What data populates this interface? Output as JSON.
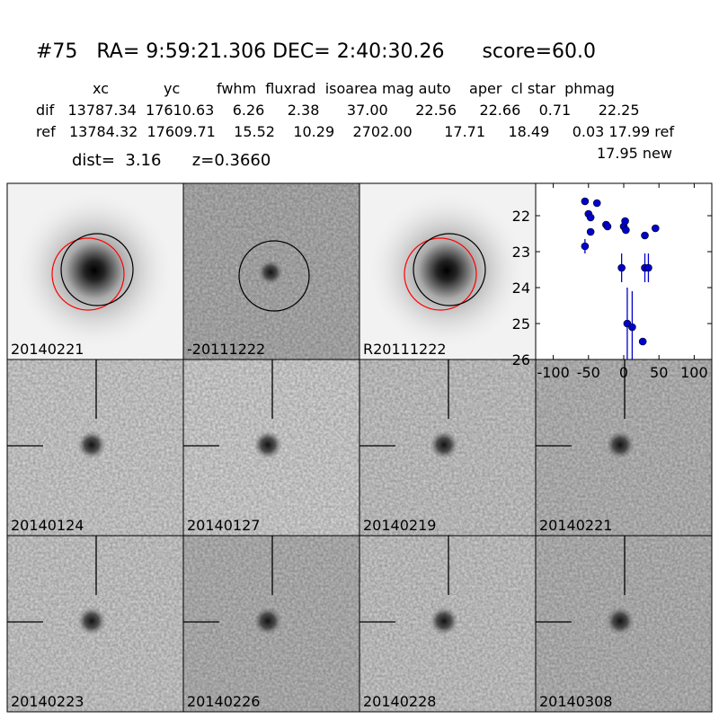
{
  "header": {
    "title": "#75   RA= 9:59:21.306 DEC= 2:40:30.26      score=60.0",
    "columns": "xc            yc        fwhm  fluxrad  isoarea mag auto    aper  cl star  phmag",
    "dif": "dif   13787.34  17610.63    6.26     2.38      37.00      22.56     22.66    0.71      22.25",
    "ref": "ref   13784.32  17609.71    15.52    10.29    2702.00       17.71     18.49     0.03 17.99 ref",
    "new": "17.95 new",
    "dist": "dist=  3.16      z=0.3660"
  },
  "panels": [
    {
      "label": "20140221"
    },
    {
      "label": "-20111222"
    },
    {
      "label": "R20111222"
    },
    {
      "label": "20140124"
    },
    {
      "label": "20140127"
    },
    {
      "label": "20140219"
    },
    {
      "label": "20140221",
      "color": "#ff0000"
    },
    {
      "label": "20140223"
    },
    {
      "label": "20140226"
    },
    {
      "label": "20140228"
    },
    {
      "label": "20140308"
    }
  ],
  "chart_data": {
    "type": "scatter",
    "color": "#0000cc",
    "x": [
      -55,
      -55,
      -50,
      -47,
      -47,
      -38,
      -25,
      -23,
      -3,
      0,
      2,
      3,
      5,
      12,
      27,
      30,
      30,
      35,
      45
    ],
    "values": [
      21.6,
      22.85,
      21.95,
      22.05,
      22.45,
      21.65,
      22.25,
      22.3,
      23.45,
      22.3,
      22.15,
      22.4,
      25.0,
      25.1,
      25.5,
      22.55,
      23.45,
      23.45,
      22.35
    ],
    "errors": [
      0.1,
      0.2,
      0.1,
      0.1,
      0.1,
      0.05,
      0.1,
      0.1,
      0.4,
      0.1,
      0.1,
      0.1,
      1.0,
      1.0,
      0.1,
      0.1,
      0.4,
      0.4,
      0.1
    ],
    "xlim": [
      -125,
      125
    ],
    "ylim": [
      21.1,
      26
    ],
    "xticks": [
      -100,
      -50,
      0,
      50,
      100
    ],
    "yticks": [
      22,
      23,
      24,
      25,
      26
    ],
    "y_inverted": true
  }
}
